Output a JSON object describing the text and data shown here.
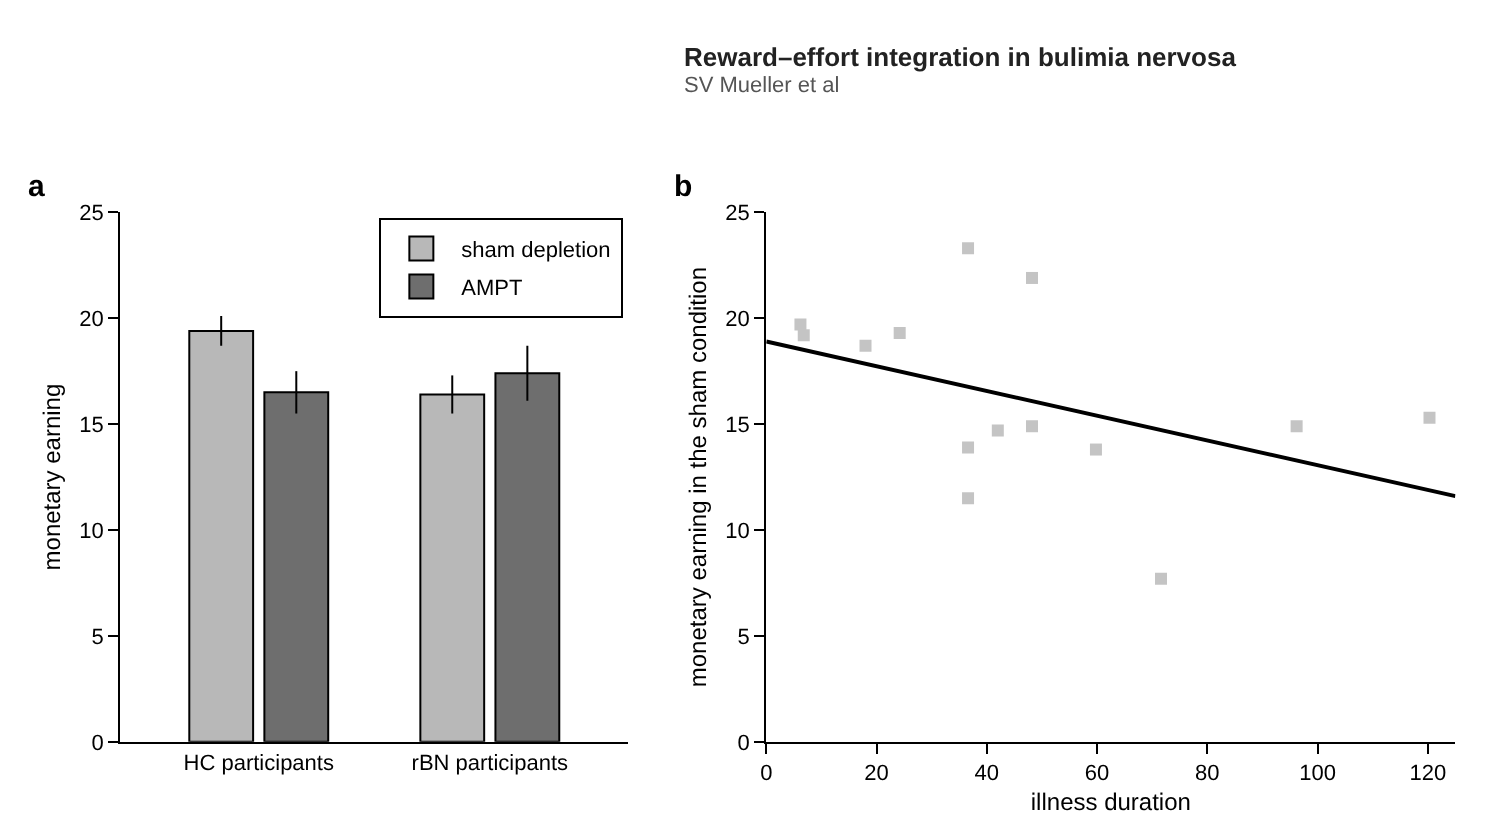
{
  "chart_data": [
    {
      "type": "bar",
      "title": "a",
      "ylabel": "monetary earning",
      "categories": [
        "HC participants",
        "rBN participants"
      ],
      "series": [
        {
          "name": "sham depletion",
          "color": "#b8b8b8",
          "values": [
            19.4,
            16.4
          ],
          "errors": [
            0.7,
            0.9
          ]
        },
        {
          "name": "AMPT",
          "color": "#6e6e6e",
          "values": [
            16.5,
            17.4
          ],
          "errors": [
            1.0,
            1.3
          ]
        }
      ],
      "ylim": [
        0,
        25
      ],
      "yticks": [
        0,
        5,
        10,
        15,
        20,
        25
      ],
      "legend": "top right"
    },
    {
      "type": "scatter",
      "title": "b",
      "xlabel": "illness duration",
      "ylabel": "monetary earning in the sham condition",
      "annotations": [
        "Reward–effort integration in bulimia nervosa",
        "SV Mueller et al"
      ],
      "series": [
        {
          "type": "scatter",
          "marker": "square",
          "color": "#c4c4c4",
          "x": [
            6.2,
            6.8,
            18,
            24.2,
            36.6,
            36.6,
            36.6,
            42,
            48.2,
            48.2,
            59.8,
            71.6,
            96.2,
            120.3
          ],
          "values": [
            19.7,
            19.2,
            18.7,
            19.3,
            23.3,
            13.9,
            11.5,
            14.7,
            21.9,
            14.9,
            13.8,
            7.7,
            14.9,
            15.3
          ]
        },
        {
          "type": "line",
          "marker": "none",
          "color": "#000000",
          "x": [
            0,
            125
          ],
          "values": [
            18.9,
            11.6
          ]
        }
      ],
      "xlim": [
        0,
        125
      ],
      "xticks": [
        0,
        20,
        40,
        60,
        80,
        100,
        120
      ],
      "ylim": [
        0,
        25
      ],
      "yticks": [
        0,
        5,
        10,
        15,
        20,
        25
      ],
      "legend": false
    }
  ]
}
